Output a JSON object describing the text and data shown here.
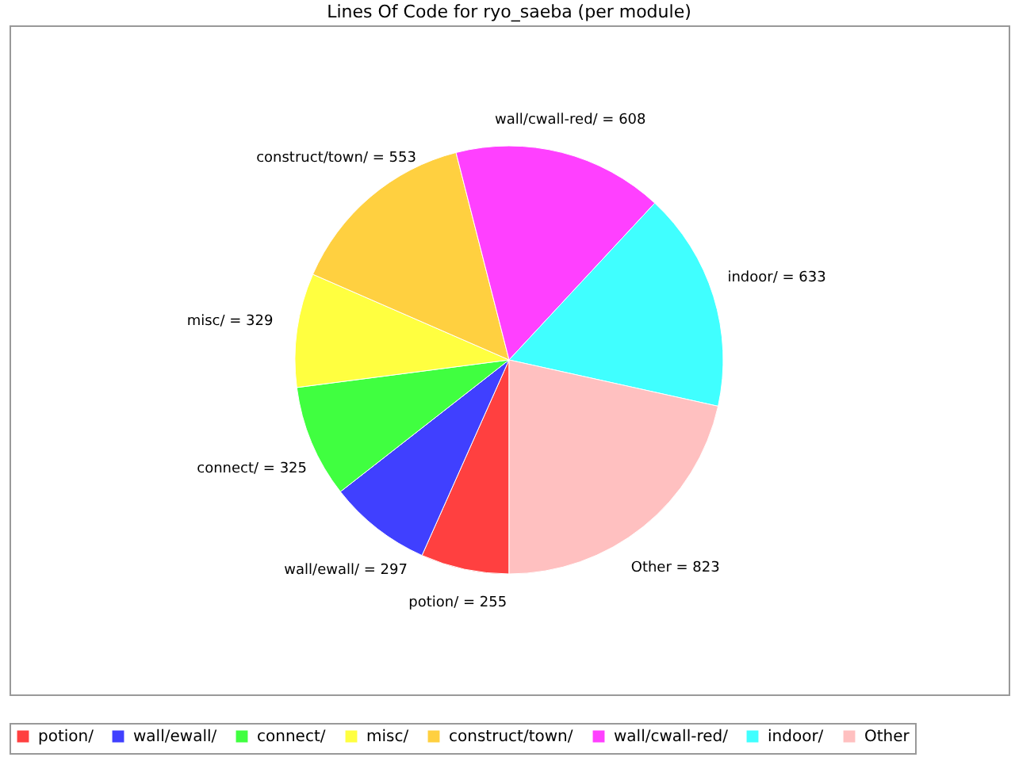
{
  "chart_data": {
    "type": "pie",
    "title": "Lines Of Code for ryo_saeba (per module)",
    "categories": [
      "potion/",
      "wall/ewall/",
      "connect/",
      "misc/",
      "construct/town/",
      "wall/cwall-red/",
      "indoor/",
      "Other"
    ],
    "values": [
      255,
      297,
      325,
      329,
      553,
      608,
      633,
      823
    ],
    "colors": [
      "#ff4040",
      "#4040ff",
      "#40ff40",
      "#ffff40",
      "#ffd040",
      "#ff40ff",
      "#40ffff",
      "#ffc0c0"
    ],
    "value_labels": [
      "potion/ = 255",
      "wall/ewall/ = 297",
      "connect/ = 325",
      "misc/ = 329",
      "construct/town/ = 553",
      "wall/cwall-red/ = 608",
      "indoor/ = 633",
      "Other = 823"
    ],
    "legend": "bottom"
  }
}
